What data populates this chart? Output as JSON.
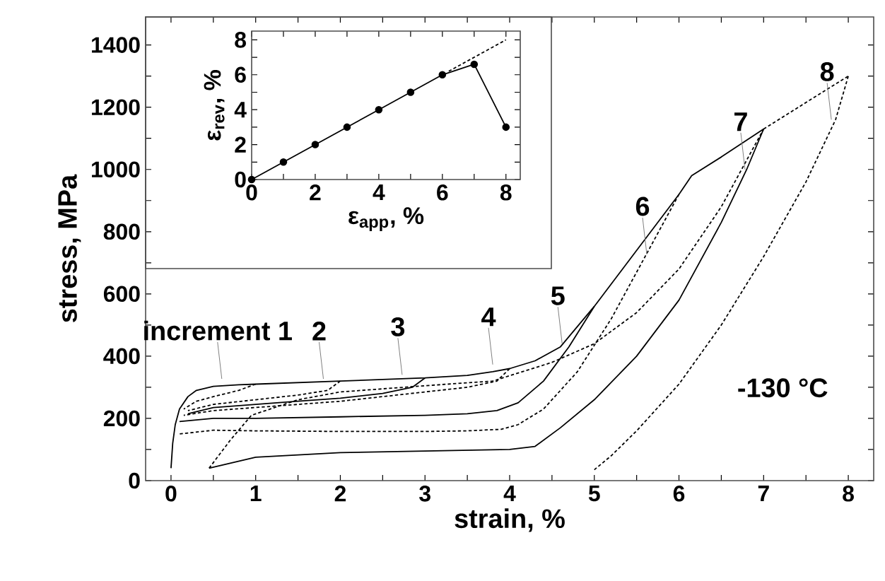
{
  "chart_data": [
    {
      "type": "line",
      "xlabel": "strain, %",
      "ylabel": "stress, MPa",
      "xlim": [
        -0.3,
        8.3
      ],
      "ylim": [
        0,
        1490
      ],
      "xticks": [
        0,
        {
          "value": 0.5,
          "label": null
        },
        1,
        {
          "value": 1.5,
          "label": null
        },
        2,
        {
          "value": 2.5,
          "label": null
        },
        3,
        {
          "value": 3.5,
          "label": null
        },
        4,
        {
          "value": 4.5,
          "label": null
        },
        5,
        {
          "value": 5.5,
          "label": null
        },
        6,
        {
          "value": 6.5,
          "label": null
        },
        7,
        {
          "value": 7.5,
          "label": null
        },
        8
      ],
      "yticks": [
        0,
        {
          "value": 100,
          "label": null
        },
        200,
        {
          "value": 300,
          "label": null
        },
        400,
        {
          "value": 500,
          "label": null
        },
        600,
        {
          "value": 700,
          "label": null
        },
        800,
        {
          "value": 900,
          "label": null
        },
        1000,
        {
          "value": 1100,
          "label": null
        },
        1200,
        {
          "value": 1300,
          "label": null
        },
        1400
      ],
      "marker": "none",
      "series": [
        {
          "color": "#000000",
          "line_style": "solid",
          "x": [
            0,
            0.02,
            0.05,
            0.1,
            0.2,
            0.3,
            0.5,
            0.8,
            1,
            1.5,
            2,
            2.5,
            3,
            3.5,
            3.8,
            4,
            4.3,
            4.6,
            5,
            5.5,
            6,
            6.15,
            6.5,
            7
          ],
          "values": [
            40,
            120,
            180,
            230,
            270,
            290,
            303,
            308,
            310,
            315,
            320,
            325,
            330,
            338,
            350,
            360,
            385,
            430,
            560,
            740,
            920,
            980,
            1040,
            1130
          ]
        },
        {
          "color": "#000000",
          "line_style": "dashed",
          "x": [
            7,
            7.5,
            8
          ],
          "values": [
            1130,
            1215,
            1300
          ]
        },
        {
          "color": "#000000",
          "line_style": "dashed",
          "x": [
            1,
            0.8,
            0.5,
            0.3,
            0.15
          ],
          "values": [
            310,
            290,
            270,
            255,
            230
          ]
        },
        {
          "color": "#000000",
          "line_style": "dashed",
          "x": [
            2,
            1.85,
            1.5,
            1,
            0.5,
            0.2
          ],
          "values": [
            320,
            290,
            275,
            260,
            245,
            225
          ]
        },
        {
          "color": "#000000",
          "line_style": "solid",
          "x": [
            3,
            2.85,
            2.5,
            2,
            1.5,
            1,
            0.5,
            0.2
          ],
          "values": [
            330,
            300,
            280,
            265,
            255,
            245,
            235,
            215
          ]
        },
        {
          "color": "#000000",
          "line_style": "dashed",
          "x": [
            4,
            3.85,
            3.5,
            3,
            2.5,
            2,
            1.5,
            1,
            0.5,
            0.15
          ],
          "values": [
            360,
            320,
            300,
            285,
            270,
            255,
            245,
            235,
            225,
            210
          ]
        },
        {
          "color": "#000000",
          "line_style": "solid",
          "x": [
            5,
            4.7,
            4.4,
            4.1,
            3.85,
            3.5,
            3,
            2,
            1,
            0.5,
            0.1
          ],
          "values": [
            560,
            430,
            320,
            250,
            225,
            215,
            210,
            205,
            200,
            200,
            190
          ]
        },
        {
          "color": "#000000",
          "line_style": "dashed",
          "x": [
            6,
            5.6,
            5.2,
            4.8,
            4.4,
            4.1,
            3.9,
            3.5,
            3,
            2,
            1,
            0.5,
            0.1
          ],
          "values": [
            920,
            720,
            520,
            350,
            230,
            180,
            165,
            160,
            158,
            158,
            160,
            162,
            150
          ]
        },
        {
          "color": "#000000",
          "line_style": "solid",
          "x": [
            7,
            6.8,
            6.5,
            6,
            5.5,
            5,
            4.6,
            4.3,
            4,
            3,
            2,
            1,
            0.45
          ],
          "values": [
            1130,
            1000,
            830,
            580,
            400,
            260,
            170,
            110,
            100,
            95,
            90,
            75,
            40
          ]
        },
        {
          "color": "#000000",
          "line_style": "dashed",
          "x": [
            0.45,
            0.7,
            0.95,
            1.5,
            2,
            3,
            3.8,
            4.5,
            5,
            5.5,
            6,
            6.5,
            7
          ],
          "values": [
            40,
            130,
            210,
            260,
            285,
            305,
            320,
            380,
            440,
            540,
            680,
            880,
            1130
          ]
        },
        {
          "color": "#000000",
          "line_style": "dashed",
          "x": [
            8,
            7.85,
            7.5,
            7,
            6.5,
            6,
            5.5,
            5.2,
            5
          ],
          "values": [
            1300,
            1160,
            960,
            720,
            500,
            310,
            160,
            80,
            35
          ]
        }
      ],
      "annotations": [
        {
          "text": "increment 1",
          "x": 0.6,
          "y": 327
        },
        {
          "text": "2",
          "x": 1.8,
          "y": 327
        },
        {
          "text": "3",
          "x": 2.73,
          "y": 340
        },
        {
          "text": "4",
          "x": 3.8,
          "y": 373
        },
        {
          "text": "5",
          "x": 4.62,
          "y": 440
        },
        {
          "text": "6",
          "x": 5.62,
          "y": 727
        },
        {
          "text": "7",
          "x": 6.78,
          "y": 1000
        },
        {
          "text": "8",
          "x": 7.8,
          "y": 1160
        },
        "-130 °C"
      ]
    },
    {
      "type": "line",
      "xlabel": "ε$_{app}$, %",
      "ylabel": "ε$_{rev}$, %",
      "xlim": [
        0,
        8.45
      ],
      "ylim": [
        0,
        8.5
      ],
      "xticks": [
        0,
        {
          "value": 1,
          "label": null
        },
        2,
        {
          "value": 3,
          "label": null
        },
        4,
        {
          "value": 5,
          "label": null
        },
        6,
        {
          "value": 7,
          "label": null
        },
        8
      ],
      "yticks": [
        0,
        {
          "value": 1,
          "label": null
        },
        2,
        {
          "value": 3,
          "label": null
        },
        4,
        {
          "value": 5,
          "label": null
        },
        6,
        {
          "value": 7,
          "label": null
        },
        8
      ],
      "series": [
        {
          "color": "#000000",
          "line_style": "solid",
          "marker": "circle",
          "x": [
            0,
            1,
            2,
            3,
            4,
            5,
            6,
            7,
            8
          ],
          "values": [
            0,
            1,
            2,
            3,
            4,
            5,
            6,
            6.6,
            3
          ]
        },
        {
          "color": "#000000",
          "line_style": "dashed",
          "marker": "none",
          "x": [
            6.2,
            8
          ],
          "values": [
            6.2,
            8
          ]
        }
      ]
    }
  ]
}
